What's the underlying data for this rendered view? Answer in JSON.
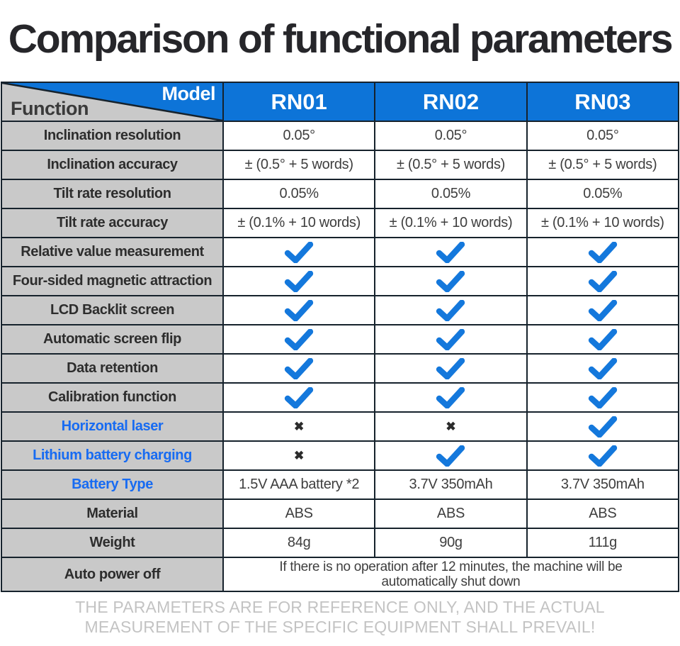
{
  "title": "Comparison of functional parameters",
  "footer": "THE PARAMETERS ARE FOR REFERENCE ONLY, AND THE ACTUAL MEASUREMENT OF THE SPECIFIC EQUIPMENT SHALL PREVAIL!",
  "colors": {
    "header_blue": "#0d74d8",
    "check_blue": "#1478dc",
    "label_blue": "#176bf2",
    "label_gray": "#c9c9c9",
    "border": "#16222c"
  },
  "table": {
    "corner": {
      "function_label": "Function",
      "model_label": "Model"
    },
    "models": [
      "RN01",
      "RN02",
      "RN03"
    ],
    "rows": [
      {
        "label": "Inclination resolution",
        "style": "dark",
        "kind": "text",
        "values": [
          "0.05°",
          "0.05°",
          "0.05°"
        ]
      },
      {
        "label": "Inclination accuracy",
        "style": "dark",
        "kind": "text",
        "values": [
          "± (0.5° + 5 words)",
          "± (0.5° + 5 words)",
          "± (0.5° + 5 words)"
        ]
      },
      {
        "label": "Tilt rate resolution",
        "style": "dark",
        "kind": "text",
        "values": [
          "0.05%",
          "0.05%",
          "0.05%"
        ]
      },
      {
        "label": "Tilt rate accuracy",
        "style": "dark",
        "kind": "text",
        "values": [
          "± (0.1% + 10 words)",
          "± (0.1% + 10 words)",
          "± (0.1% + 10 words)"
        ]
      },
      {
        "label": "Relative value measurement",
        "style": "dark",
        "kind": "marks",
        "values": [
          "check",
          "check",
          "check"
        ]
      },
      {
        "label": "Four-sided magnetic attraction",
        "style": "dark",
        "kind": "marks",
        "values": [
          "check",
          "check",
          "check"
        ]
      },
      {
        "label": "LCD Backlit screen",
        "style": "dark",
        "kind": "marks",
        "values": [
          "check",
          "check",
          "check"
        ]
      },
      {
        "label": "Automatic screen flip",
        "style": "dark",
        "kind": "marks",
        "values": [
          "check",
          "check",
          "check"
        ]
      },
      {
        "label": "Data retention",
        "style": "dark",
        "kind": "marks",
        "values": [
          "check",
          "check",
          "check"
        ]
      },
      {
        "label": "Calibration function",
        "style": "dark",
        "kind": "marks",
        "values": [
          "check",
          "check",
          "check"
        ]
      },
      {
        "label": "Horizontal laser",
        "style": "blue",
        "kind": "marks",
        "values": [
          "cross",
          "cross",
          "check"
        ]
      },
      {
        "label": "Lithium battery charging",
        "style": "blue",
        "kind": "marks",
        "values": [
          "cross",
          "check",
          "check"
        ]
      },
      {
        "label": "Battery Type",
        "style": "blue",
        "kind": "text",
        "values": [
          "1.5V AAA battery *2",
          "3.7V 350mAh",
          "3.7V 350mAh"
        ]
      },
      {
        "label": "Material",
        "style": "dark",
        "kind": "text",
        "values": [
          "ABS",
          "ABS",
          "ABS"
        ]
      },
      {
        "label": "Weight",
        "style": "dark",
        "kind": "text",
        "values": [
          "84g",
          "90g",
          "111g"
        ]
      },
      {
        "label": "Auto power off",
        "style": "dark",
        "kind": "span",
        "values": [
          "If there is no operation after 12 minutes, the machine will be automatically shut down"
        ]
      }
    ]
  },
  "chart_data": {
    "type": "table",
    "title": "Comparison of functional parameters",
    "columns": [
      "Function",
      "RN01",
      "RN02",
      "RN03"
    ],
    "rows": [
      [
        "Inclination resolution",
        "0.05°",
        "0.05°",
        "0.05°"
      ],
      [
        "Inclination accuracy",
        "± (0.5° + 5 words)",
        "± (0.5° + 5 words)",
        "± (0.5° + 5 words)"
      ],
      [
        "Tilt rate resolution",
        "0.05%",
        "0.05%",
        "0.05%"
      ],
      [
        "Tilt rate accuracy",
        "± (0.1% + 10 words)",
        "± (0.1% + 10 words)",
        "± (0.1% + 10 words)"
      ],
      [
        "Relative value measurement",
        "✓",
        "✓",
        "✓"
      ],
      [
        "Four-sided magnetic attraction",
        "✓",
        "✓",
        "✓"
      ],
      [
        "LCD Backlit screen",
        "✓",
        "✓",
        "✓"
      ],
      [
        "Automatic screen flip",
        "✓",
        "✓",
        "✓"
      ],
      [
        "Data retention",
        "✓",
        "✓",
        "✓"
      ],
      [
        "Calibration function",
        "✓",
        "✓",
        "✓"
      ],
      [
        "Horizontal laser",
        "✗",
        "✗",
        "✓"
      ],
      [
        "Lithium battery charging",
        "✗",
        "✓",
        "✓"
      ],
      [
        "Battery Type",
        "1.5V AAA battery *2",
        "3.7V 350mAh",
        "3.7V 350mAh"
      ],
      [
        "Material",
        "ABS",
        "ABS",
        "ABS"
      ],
      [
        "Weight",
        "84g",
        "90g",
        "111g"
      ],
      [
        "Auto power off",
        "If there is no operation after 12 minutes, the machine will be automatically shut down",
        "",
        ""
      ]
    ]
  }
}
